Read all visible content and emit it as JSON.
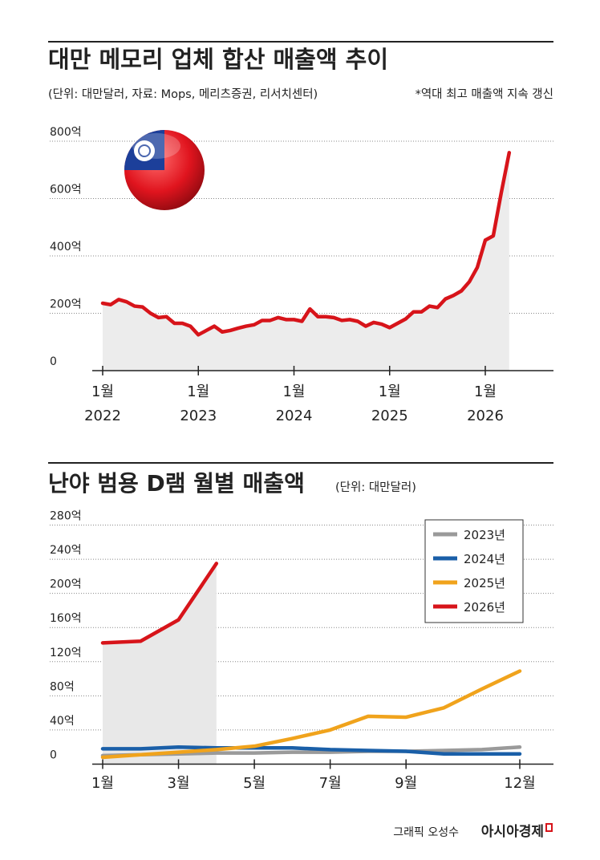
{
  "chart_data": [
    {
      "type": "line",
      "title": "대만 메모리 업체 합산 매출액 추이",
      "subtitle": "(단위: 대만달러, 자료: Mops, 메리츠증권, 리서치센터)",
      "annotation": "*역대 최고 매출액 지속 갱신",
      "categories": [
        [
          "1월",
          "2022"
        ],
        null,
        null,
        null,
        null,
        null,
        null,
        null,
        null,
        null,
        null,
        null,
        [
          "1월",
          "2023"
        ],
        null,
        null,
        null,
        null,
        null,
        null,
        null,
        null,
        null,
        null,
        null,
        [
          "1월",
          "2024"
        ],
        null,
        null,
        null,
        null,
        null,
        null,
        null,
        null,
        null,
        null,
        null,
        [
          "1월",
          "2025"
        ],
        null,
        null,
        null,
        null,
        null,
        null,
        null,
        null,
        null,
        null,
        null,
        [
          "1월",
          "2026"
        ],
        null,
        null,
        null
      ],
      "values": [
        235,
        230,
        248,
        240,
        225,
        222,
        200,
        185,
        188,
        165,
        165,
        155,
        125,
        140,
        155,
        135,
        140,
        148,
        155,
        160,
        175,
        175,
        185,
        178,
        178,
        172,
        215,
        188,
        188,
        185,
        175,
        178,
        172,
        155,
        168,
        162,
        150,
        165,
        180,
        205,
        205,
        225,
        220,
        250,
        262,
        278,
        310,
        360,
        455,
        470,
        620,
        760
      ],
      "color": "#d7141a",
      "fill": "#ececec",
      "ylim": [
        0,
        800
      ],
      "yticks": [
        0,
        {
          "value": 200,
          "label": "200억"
        },
        {
          "value": 400,
          "label": "400억"
        },
        {
          "value": 600,
          "label": "600억"
        },
        {
          "value": 800,
          "label": "800억"
        }
      ],
      "grid": true
    },
    {
      "type": "line",
      "title": "난야 범용 D램 월별 매출액",
      "subtitle": "(단위: 대만달러)",
      "categories": [
        "1월",
        null,
        "3월",
        null,
        "5월",
        null,
        "7월",
        null,
        "9월",
        null,
        null,
        "12월"
      ],
      "series": [
        {
          "name": "2023년",
          "color": "#9a9a9a",
          "values": [
            10,
            11,
            12,
            13,
            13,
            14,
            14,
            15,
            15,
            16,
            17,
            20
          ]
        },
        {
          "name": "2024년",
          "color": "#1a5fa8",
          "values": [
            18,
            18,
            20,
            19,
            19,
            19,
            17,
            16,
            15,
            12,
            12,
            12
          ]
        },
        {
          "name": "2025년",
          "color": "#f0a31c",
          "values": [
            8,
            11,
            14,
            17,
            21,
            30,
            40,
            56,
            55,
            66,
            88,
            109
          ]
        },
        {
          "name": "2026년",
          "color": "#d7141a",
          "fill": "#e8e8e8",
          "values": [
            142,
            144,
            169,
            235,
            null,
            null,
            null,
            null,
            null,
            null,
            null,
            null
          ]
        }
      ],
      "ylim": [
        0,
        280
      ],
      "yticks": [
        0,
        {
          "value": 40,
          "label": "40억"
        },
        {
          "value": 80,
          "label": "80억"
        },
        {
          "value": 120,
          "label": "120억"
        },
        {
          "value": 160,
          "label": "160억"
        },
        {
          "value": 200,
          "label": "200억"
        },
        {
          "value": 240,
          "label": "240억"
        },
        {
          "value": 280,
          "label": "280억"
        }
      ],
      "grid": true,
      "legend": "upper right"
    }
  ],
  "footer": {
    "credit": "그래픽 오성수",
    "brand": "아시아경제"
  }
}
